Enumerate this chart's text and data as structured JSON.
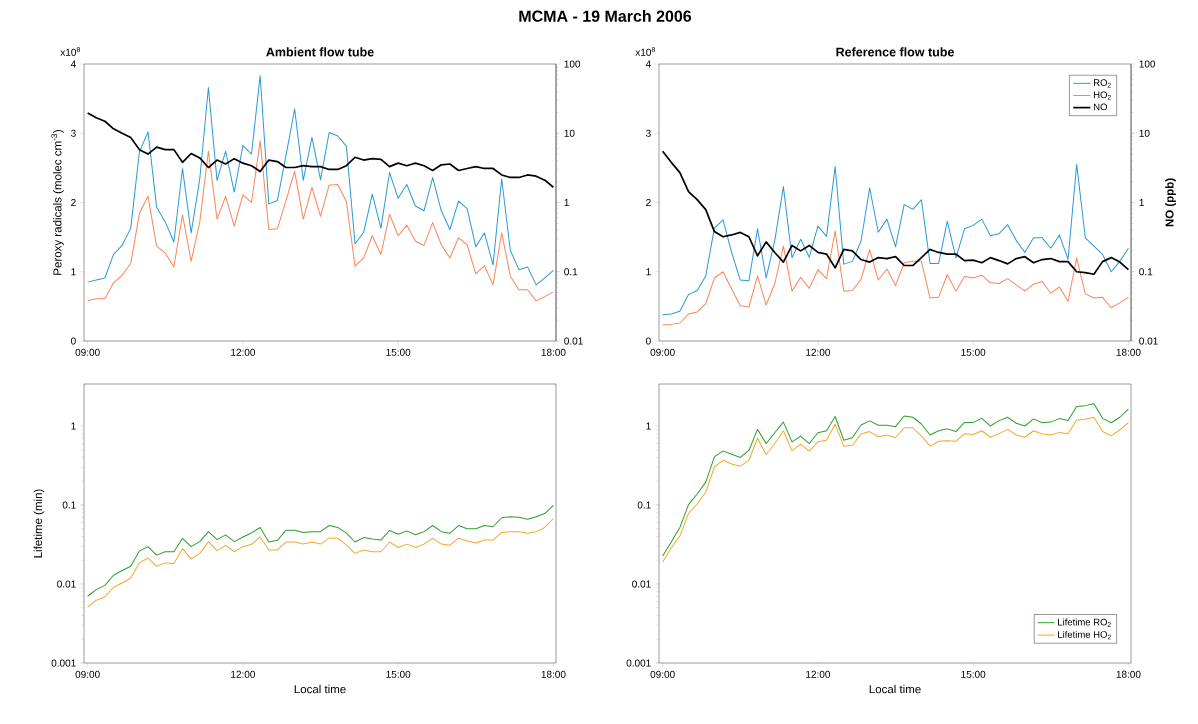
{
  "chart_data": [
    {
      "type": "line",
      "title": "MCMA - 19 March 2006",
      "subtitle": "Ambient flow tube",
      "ylabel": "Peroxy radicals (molec cm$^{-3}$)",
      "annotations": [
        "x10$^{8}$"
      ],
      "x": [
        9,
        9.1667,
        9.3333,
        9.5,
        9.6667,
        9.8333,
        10,
        10.1667,
        10.3333,
        10.5,
        10.6667,
        10.8333,
        11,
        11.1667,
        11.3333,
        11.5,
        11.6667,
        11.8333,
        12,
        12.1667,
        12.3333,
        12.5,
        12.6667,
        12.8333,
        13,
        13.1667,
        13.3333,
        13.5,
        13.6667,
        13.8333,
        14,
        14.1667,
        14.3333,
        14.5,
        14.6667,
        14.8333,
        15,
        15.1667,
        15.3333,
        15.5,
        15.6667,
        15.8333,
        16,
        16.1667,
        16.3333,
        16.5,
        16.6667,
        16.8333,
        17,
        17.1667,
        17.3333,
        17.5,
        17.6667,
        17.8333,
        18
      ],
      "xlim": [
        8.93,
        18.05
      ],
      "xticks": [
        {
          "value": 9,
          "label": "09:00"
        },
        {
          "value": 12,
          "label": "12:00"
        },
        {
          "value": 15,
          "label": "15:00"
        },
        {
          "value": 18,
          "label": "18:00"
        }
      ],
      "ylim": [
        0,
        4
      ],
      "yticks": [
        0,
        1,
        2,
        3,
        4
      ],
      "y2lim": [
        0.01,
        100
      ],
      "y2ticks": [
        0.01,
        0.1,
        1,
        10,
        100
      ],
      "log": "y2",
      "series": [
        {
          "color": "#2a9ad6",
          "values": [
            0.85,
            0.88,
            0.91,
            1.25,
            1.38,
            1.63,
            2.73,
            3.02,
            1.93,
            1.72,
            1.43,
            2.49,
            1.56,
            2.34,
            3.66,
            2.32,
            2.74,
            2.15,
            2.82,
            2.7,
            3.83,
            1.98,
            2.03,
            2.68,
            3.35,
            2.32,
            2.94,
            2.33,
            3.01,
            2.96,
            2.81,
            1.4,
            1.57,
            2.12,
            1.63,
            2.43,
            2.06,
            2.26,
            1.95,
            1.88,
            2.36,
            1.88,
            1.61,
            2.02,
            1.91,
            1.36,
            1.56,
            1.1,
            2.34,
            1.31,
            1.03,
            1.07,
            0.81,
            0.91,
            1.02
          ]
        },
        {
          "color": "#fc8456",
          "values": [
            0.58,
            0.61,
            0.61,
            0.84,
            0.95,
            1.12,
            1.84,
            2.09,
            1.37,
            1.27,
            1.07,
            1.82,
            1.15,
            1.72,
            2.74,
            1.76,
            2.09,
            1.66,
            2.11,
            2.0,
            2.89,
            1.61,
            1.62,
            2.03,
            2.45,
            1.76,
            2.22,
            1.8,
            2.25,
            2.26,
            2.01,
            1.08,
            1.2,
            1.52,
            1.25,
            1.83,
            1.52,
            1.67,
            1.44,
            1.38,
            1.71,
            1.39,
            1.2,
            1.49,
            1.39,
            0.97,
            1.09,
            0.81,
            1.56,
            0.94,
            0.74,
            0.74,
            0.58,
            0.64,
            0.71
          ]
        },
        {
          "color": "#000000",
          "axis": "y2",
          "values": [
            19.6,
            16.7,
            14.9,
            11.6,
            10.0,
            8.7,
            5.8,
            5.0,
            6.3,
            5.8,
            5.8,
            3.8,
            5.1,
            4.4,
            3.2,
            4.1,
            3.6,
            4.3,
            3.7,
            3.4,
            2.8,
            4.1,
            3.9,
            3.2,
            3.2,
            3.4,
            3.3,
            3.3,
            3.0,
            3.0,
            3.4,
            4.5,
            4.1,
            4.3,
            4.2,
            3.3,
            3.7,
            3.4,
            3.7,
            3.4,
            2.9,
            3.5,
            3.6,
            2.9,
            3.1,
            3.3,
            3.1,
            3.1,
            2.5,
            2.3,
            2.3,
            2.5,
            2.4,
            2.1,
            1.66
          ]
        }
      ]
    },
    {
      "type": "line",
      "title": "Reference flow tube",
      "y2label": "NO (ppb)",
      "legend": "top right",
      "annotations": [
        "x10$^{8}$"
      ],
      "x": [
        9,
        9.1667,
        9.3333,
        9.5,
        9.6667,
        9.8333,
        10,
        10.1667,
        10.3333,
        10.5,
        10.6667,
        10.8333,
        11,
        11.1667,
        11.3333,
        11.5,
        11.6667,
        11.8333,
        12,
        12.1667,
        12.3333,
        12.5,
        12.6667,
        12.8333,
        13,
        13.1667,
        13.3333,
        13.5,
        13.6667,
        13.8333,
        14,
        14.1667,
        14.3333,
        14.5,
        14.6667,
        14.8333,
        15,
        15.1667,
        15.3333,
        15.5,
        15.6667,
        15.8333,
        16,
        16.1667,
        16.3333,
        16.5,
        16.6667,
        16.8333,
        17,
        17.1667,
        17.3333,
        17.5,
        17.6667,
        17.8333,
        18
      ],
      "xlim": [
        8.93,
        18.05
      ],
      "xticks": [
        {
          "value": 9,
          "label": "09:00"
        },
        {
          "value": 12,
          "label": "12:00"
        },
        {
          "value": 15,
          "label": "15:00"
        },
        {
          "value": 18,
          "label": "18:00"
        }
      ],
      "ylim": [
        0,
        4
      ],
      "yticks": [
        0,
        1,
        2,
        3,
        4
      ],
      "y2lim": [
        0.01,
        100
      ],
      "y2ticks": [
        0.01,
        0.1,
        1,
        10,
        100
      ],
      "log": "y2",
      "series": [
        {
          "name": "RO$_{2}$",
          "color": "#2a9ad6",
          "values": [
            0.38,
            0.39,
            0.43,
            0.67,
            0.73,
            0.94,
            1.63,
            1.75,
            1.28,
            0.88,
            0.87,
            1.62,
            0.91,
            1.45,
            2.23,
            1.2,
            1.47,
            1.21,
            1.66,
            1.51,
            2.52,
            1.11,
            1.15,
            1.44,
            2.21,
            1.57,
            1.76,
            1.36,
            1.97,
            1.9,
            2.04,
            1.12,
            1.12,
            1.73,
            1.2,
            1.62,
            1.67,
            1.76,
            1.52,
            1.55,
            1.68,
            1.45,
            1.28,
            1.49,
            1.49,
            1.34,
            1.53,
            1.18,
            2.55,
            1.49,
            1.37,
            1.25,
            1.0,
            1.15,
            1.34
          ]
        },
        {
          "name": "HO$_{2}$",
          "color": "#fc8456",
          "values": [
            0.23,
            0.24,
            0.26,
            0.39,
            0.42,
            0.54,
            0.91,
            1.0,
            0.75,
            0.51,
            0.49,
            0.94,
            0.52,
            0.83,
            1.37,
            0.72,
            0.92,
            0.76,
            1.03,
            0.9,
            1.59,
            0.72,
            0.73,
            0.89,
            1.32,
            0.88,
            1.04,
            0.8,
            1.13,
            1.15,
            1.15,
            0.62,
            0.63,
            0.96,
            0.72,
            0.93,
            0.91,
            0.95,
            0.84,
            0.83,
            0.9,
            0.81,
            0.72,
            0.82,
            0.86,
            0.69,
            0.78,
            0.57,
            1.2,
            0.68,
            0.62,
            0.63,
            0.48,
            0.55,
            0.63
          ]
        },
        {
          "name": "NO",
          "color": "#000000",
          "axis": "y2",
          "values": [
            5.5,
            3.8,
            2.7,
            1.44,
            1.1,
            0.79,
            0.38,
            0.32,
            0.34,
            0.37,
            0.32,
            0.17,
            0.27,
            0.19,
            0.138,
            0.24,
            0.2,
            0.24,
            0.19,
            0.18,
            0.114,
            0.21,
            0.2,
            0.15,
            0.138,
            0.16,
            0.155,
            0.165,
            0.123,
            0.123,
            0.16,
            0.21,
            0.19,
            0.18,
            0.18,
            0.145,
            0.147,
            0.135,
            0.16,
            0.145,
            0.13,
            0.155,
            0.165,
            0.135,
            0.15,
            0.155,
            0.14,
            0.14,
            0.1,
            0.097,
            0.092,
            0.14,
            0.16,
            0.138,
            0.107
          ]
        }
      ]
    },
    {
      "type": "line",
      "xlabel": "Local time",
      "ylabel": "Lifetime (min)",
      "x": [
        9,
        9.1667,
        9.3333,
        9.5,
        9.6667,
        9.8333,
        10,
        10.1667,
        10.3333,
        10.5,
        10.6667,
        10.8333,
        11,
        11.1667,
        11.3333,
        11.5,
        11.6667,
        11.8333,
        12,
        12.1667,
        12.3333,
        12.5,
        12.6667,
        12.8333,
        13,
        13.1667,
        13.3333,
        13.5,
        13.6667,
        13.8333,
        14,
        14.1667,
        14.3333,
        14.5,
        14.6667,
        14.8333,
        15,
        15.1667,
        15.3333,
        15.5,
        15.6667,
        15.8333,
        16,
        16.1667,
        16.3333,
        16.5,
        16.6667,
        16.8333,
        17,
        17.1667,
        17.3333,
        17.5,
        17.6667,
        17.8333,
        18
      ],
      "xlim": [
        8.93,
        18.05
      ],
      "xticks": [
        {
          "value": 9,
          "label": "09:00"
        },
        {
          "value": 12,
          "label": "12:00"
        },
        {
          "value": 15,
          "label": "15:00"
        },
        {
          "value": 18,
          "label": "18:00"
        }
      ],
      "ylim": [
        0.001,
        3.4
      ],
      "yticks": [
        0.001,
        0.01,
        0.1,
        1
      ],
      "log": "y",
      "series": [
        {
          "color": "#2ca02c",
          "values": [
            0.007,
            0.0085,
            0.0096,
            0.0129,
            0.0148,
            0.0168,
            0.0261,
            0.0297,
            0.0232,
            0.0256,
            0.0256,
            0.0379,
            0.0297,
            0.0344,
            0.046,
            0.0365,
            0.0418,
            0.0344,
            0.0394,
            0.0443,
            0.0519,
            0.034,
            0.0357,
            0.048,
            0.048,
            0.0448,
            0.046,
            0.046,
            0.055,
            0.052,
            0.044,
            0.034,
            0.0387,
            0.037,
            0.036,
            0.0475,
            0.0427,
            0.047,
            0.042,
            0.046,
            0.055,
            0.046,
            0.044,
            0.055,
            0.05,
            0.05,
            0.055,
            0.053,
            0.069,
            0.071,
            0.07,
            0.066,
            0.071,
            0.078,
            0.099
          ]
        },
        {
          "color": "#f5a82a",
          "values": [
            0.0051,
            0.0062,
            0.0069,
            0.0091,
            0.0103,
            0.0119,
            0.0185,
            0.0213,
            0.0168,
            0.0185,
            0.0182,
            0.028,
            0.0208,
            0.0244,
            0.0344,
            0.0264,
            0.0308,
            0.0256,
            0.0297,
            0.0318,
            0.0394,
            0.027,
            0.027,
            0.034,
            0.034,
            0.032,
            0.034,
            0.032,
            0.038,
            0.038,
            0.031,
            0.0244,
            0.027,
            0.0256,
            0.0256,
            0.034,
            0.029,
            0.032,
            0.029,
            0.032,
            0.038,
            0.032,
            0.031,
            0.038,
            0.035,
            0.033,
            0.036,
            0.036,
            0.045,
            0.046,
            0.046,
            0.044,
            0.046,
            0.052,
            0.067
          ]
        }
      ]
    },
    {
      "type": "line",
      "xlabel": "Local time",
      "legend": "bottom right",
      "x": [
        9,
        9.1667,
        9.3333,
        9.5,
        9.6667,
        9.8333,
        10,
        10.1667,
        10.3333,
        10.5,
        10.6667,
        10.8333,
        11,
        11.1667,
        11.3333,
        11.5,
        11.6667,
        11.8333,
        12,
        12.1667,
        12.3333,
        12.5,
        12.6667,
        12.8333,
        13,
        13.1667,
        13.3333,
        13.5,
        13.6667,
        13.8333,
        14,
        14.1667,
        14.3333,
        14.5,
        14.6667,
        14.8333,
        15,
        15.1667,
        15.3333,
        15.5,
        15.6667,
        15.8333,
        16,
        16.1667,
        16.3333,
        16.5,
        16.6667,
        16.8333,
        17,
        17.1667,
        17.3333,
        17.5,
        17.6667,
        17.8333,
        18
      ],
      "xlim": [
        8.93,
        18.05
      ],
      "xticks": [
        {
          "value": 9,
          "label": "09:00"
        },
        {
          "value": 12,
          "label": "12:00"
        },
        {
          "value": 15,
          "label": "15:00"
        },
        {
          "value": 18,
          "label": "18:00"
        }
      ],
      "ylim": [
        0.001,
        3.4
      ],
      "yticks": [
        0.001,
        0.01,
        0.1,
        1
      ],
      "log": "y",
      "series": [
        {
          "name": "Lifetime RO$_{2}$",
          "color": "#2ca02c",
          "values": [
            0.0226,
            0.034,
            0.052,
            0.101,
            0.138,
            0.195,
            0.406,
            0.484,
            0.44,
            0.4,
            0.49,
            0.906,
            0.6,
            0.82,
            1.12,
            0.63,
            0.745,
            0.6,
            0.82,
            0.87,
            1.32,
            0.66,
            0.71,
            1.03,
            1.16,
            1.02,
            1.02,
            0.98,
            1.34,
            1.29,
            1.06,
            0.77,
            0.87,
            0.92,
            0.85,
            1.11,
            1.11,
            1.25,
            1.0,
            1.17,
            1.29,
            1.08,
            1.0,
            1.23,
            1.1,
            1.12,
            1.24,
            1.17,
            1.77,
            1.81,
            1.91,
            1.25,
            1.1,
            1.29,
            1.63
          ]
        },
        {
          "name": "Lifetime HO$_{2}$",
          "color": "#f5a82a",
          "values": [
            0.0189,
            0.0288,
            0.0406,
            0.078,
            0.103,
            0.145,
            0.303,
            0.368,
            0.33,
            0.31,
            0.368,
            0.7,
            0.435,
            0.6,
            0.87,
            0.484,
            0.59,
            0.48,
            0.63,
            0.66,
            1.05,
            0.556,
            0.57,
            0.79,
            0.85,
            0.73,
            0.77,
            0.71,
            0.95,
            0.95,
            0.75,
            0.556,
            0.64,
            0.65,
            0.64,
            0.8,
            0.78,
            0.87,
            0.72,
            0.8,
            0.906,
            0.77,
            0.72,
            0.87,
            0.79,
            0.77,
            0.83,
            0.8,
            1.19,
            1.22,
            1.29,
            0.85,
            0.75,
            0.89,
            1.11
          ]
        }
      ]
    }
  ]
}
